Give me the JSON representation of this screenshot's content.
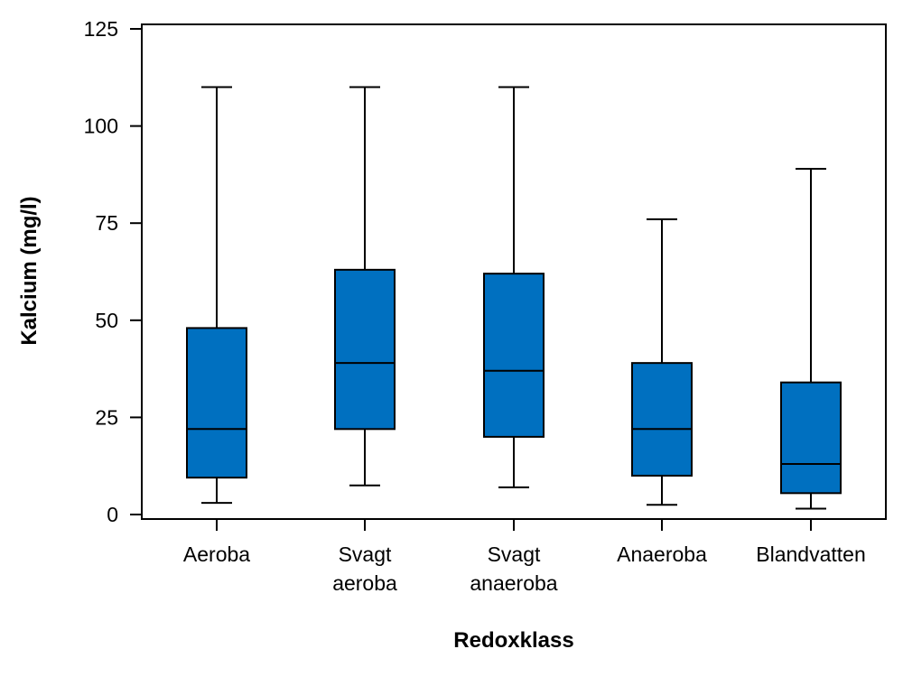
{
  "colors": {
    "box_fill": "#0070C0",
    "line": "#000000",
    "background": "#ffffff"
  },
  "chart_data": {
    "type": "boxplot",
    "title": "",
    "xlabel": "Redoxklass",
    "ylabel": "Kalcium (mg/l)",
    "ylim": [
      0,
      125
    ],
    "yticks": [
      0,
      25,
      50,
      75,
      100,
      125
    ],
    "categories": [
      {
        "lines": [
          "Aeroba"
        ]
      },
      {
        "lines": [
          "Svagt",
          "aeroba"
        ]
      },
      {
        "lines": [
          "Svagt",
          "anaeroba"
        ]
      },
      {
        "lines": [
          "Anaeroba"
        ]
      },
      {
        "lines": [
          "Blandvatten"
        ]
      }
    ],
    "boxes": [
      {
        "name": "Aeroba",
        "whisker_low": 3,
        "q1": 9.5,
        "median": 22,
        "q3": 48,
        "whisker_high": 110
      },
      {
        "name": "Svagt aeroba",
        "whisker_low": 7.5,
        "q1": 22,
        "median": 39,
        "q3": 63,
        "whisker_high": 110
      },
      {
        "name": "Svagt anaeroba",
        "whisker_low": 7,
        "q1": 20,
        "median": 37,
        "q3": 62,
        "whisker_high": 110
      },
      {
        "name": "Anaeroba",
        "whisker_low": 2.5,
        "q1": 10,
        "median": 22,
        "q3": 39,
        "whisker_high": 76
      },
      {
        "name": "Blandvatten",
        "whisker_low": 1.5,
        "q1": 5.5,
        "median": 13,
        "q3": 34,
        "whisker_high": 89
      }
    ]
  }
}
